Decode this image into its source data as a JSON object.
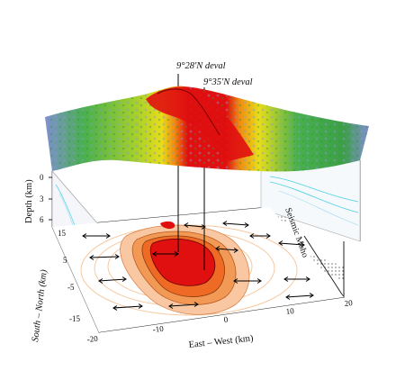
{
  "annotations": {
    "deval_1": "9°28'N deval",
    "deval_2": "9°35'N deval",
    "seismic_moho": "Seismic Moho"
  },
  "axes": {
    "depth": {
      "title": "Depth (km)",
      "ticks": [
        "0",
        "3",
        "6"
      ]
    },
    "north_south": {
      "title": "South – North (km)",
      "ticks": [
        "15",
        "5",
        "-5",
        "-15"
      ]
    },
    "east_west": {
      "title": "East – West (km)",
      "ticks": [
        "-20",
        "-10",
        "0",
        "10",
        "20"
      ]
    }
  },
  "colors": {
    "topography_low": "#7f8fd0",
    "topography_mid_low": "#48b04e",
    "topography_mid": "#e8dd1a",
    "topography_mid_high": "#f08a10",
    "topography_high": "#e01010",
    "contour_outer": "#f7c9a0",
    "contour_mid": "#f29a55",
    "contour_inner": "#ef6a24",
    "contour_core": "#e01010"
  }
}
